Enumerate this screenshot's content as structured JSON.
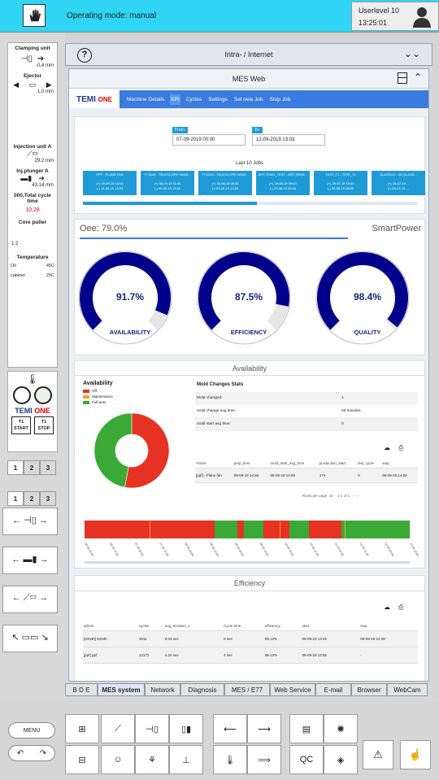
{
  "header": {
    "mode": "Operating mode: manual",
    "userlevel": "Userlevel 10",
    "time": "13:25:01"
  },
  "left": {
    "clamping": {
      "title": "Clamping unit",
      "value": "-0,4 mm"
    },
    "ejector": {
      "title": "Ejector",
      "value": "1,0 mm"
    },
    "injection": {
      "title": "Injection unit A",
      "value": "29,2 mm"
    },
    "plunger": {
      "title": "Inj.plunger A",
      "value": "43,14 mm"
    },
    "cycle": {
      "title": "000,Total cycle time",
      "value": "10,28"
    },
    "core": {
      "title": "Core puller",
      "nums": "1  2"
    },
    "temp": {
      "title": "Temperature",
      "oil_label": "Oil",
      "oil_val": "45C",
      "cab_label": "cabinet",
      "cab_val": "25C"
    },
    "logo": "TEMI",
    "logo2": "ONE",
    "start": "START",
    "stop": "STOP",
    "tabs": [
      "1",
      "2",
      "3"
    ],
    "tabs2": [
      "1",
      "2",
      "3"
    ]
  },
  "browser": {
    "title": "Intra- / Internet"
  },
  "mes": {
    "title": "MES Web",
    "nav": [
      "Machine Details",
      "KPI",
      "Cycles",
      "Settings",
      "Set new Job",
      "Stop Job"
    ],
    "from_label": "From:",
    "from_val": "07-09-2019 00:00",
    "to_label": "To:",
    "to_val": "12-09-2019 13:03",
    "last_jobs": "Last 10 Jobs",
    "jobs": [
      {
        "t": "PPF - PLANE FAN",
        "a": "(+) 09-09-19 13:56",
        "b": "(-) 12-09-19 13:03"
      },
      {
        "t": "TT154H - TELESCOPE HAND...",
        "a": "(+) 05-09-19 11:46",
        "b": "(-) 09-09-19 13:56"
      },
      {
        "t": "TT154H - TELESCOPE HAND...",
        "a": "(+) 30-08-19 09:32",
        "b": "(-) 03-09-19 12:08"
      },
      {
        "t": "ART-TEMI1_TEST - ART-TEMI1...",
        "a": "(+) 29-08-19 09:40",
        "b": "(-) 29-08-19 09:46"
      },
      {
        "t": "TEST_T1 - TEST_T1",
        "a": "(+) 29-07-19 15:40",
        "b": "(-) 29-08-19 08:50"
      },
      {
        "t": "GLASSCH - 3D GLASS...",
        "a": "(+) 29-07-19 ...",
        "b": "(-) 29-07-19 ..."
      }
    ],
    "oee": "Oee: 79.0%",
    "smartpower": "SmartPower",
    "gauges": [
      {
        "label": "AVAILABILITY",
        "value": "91.7%",
        "frac": 0.917
      },
      {
        "label": "EFFICIENCY",
        "value": "87.5%",
        "frac": 0.875
      },
      {
        "label": "QUALITY",
        "value": "98.4%",
        "frac": 0.984
      }
    ],
    "availability_title": "Availability",
    "legend_title": "Availability",
    "legend": [
      {
        "name": "Off",
        "color": "#e53222"
      },
      {
        "name": "Maintenance",
        "color": "#f5a623"
      },
      {
        "name": "Full-auto",
        "color": "#3aa936"
      }
    ],
    "mold_title": "Mold Changes Stats",
    "mold_rows": [
      [
        "Mold changed:",
        "1"
      ],
      [
        "mold change avg time:",
        "03 minutes"
      ],
      [
        "mold start avg time:",
        "0"
      ]
    ],
    "art_headers": [
      "Article",
      "prep_time",
      "mold_start_avg_time",
      "production_start",
      "last_cycle",
      "stop"
    ],
    "art_row": [
      "[ppf] - Plane fan",
      "09-09-19 14:56",
      "09-09-19 14:59",
      "174",
      "0",
      "09-09-19 14:59"
    ],
    "rows_per_page": "Rows per page:",
    "rpp_val": "10",
    "pager": "1-1 of 1",
    "efficiency_title": "Efficiency",
    "eff_headers": [
      "article",
      "cycles",
      "avg_duration_s",
      "Cycle time",
      "efficiency",
      "start",
      "stop"
    ],
    "eff_rows": [
      [
        "[tt154h] tt154h",
        "4611",
        "8.15 sec",
        "8 sec",
        "98.12%",
        "05-09-19 13:46",
        "09-09-19 14:48"
      ],
      [
        "[ppf] ppf",
        "13172",
        "4.16 sec",
        "4 sec",
        "96.12%",
        "09-09-19 14:56",
        "-"
      ]
    ],
    "timeline_ticks": [
      "06-09 00:00",
      "06-09 12:00",
      "07-09 00:00",
      "07-09 12:00",
      "08-09 00:00",
      "08-09 12:00",
      "09-09 00:00",
      "09-09 12:00",
      "10-09 00:00",
      "10-09 12:00",
      "11-09 00:00",
      "11-09 12:00",
      "12-09 00:00",
      "12-09 12:00"
    ]
  },
  "tabs": [
    "B D E",
    "MES system",
    "Network",
    "Diagnosis",
    "MES / E77",
    "Web Service",
    "E-mail",
    "Browser",
    "WebCam"
  ],
  "menu": "MENU",
  "chart_data": {
    "type": "pie",
    "title": "Availability",
    "categories": [
      "Off",
      "Maintenance",
      "Full-auto"
    ],
    "values": [
      53,
      0,
      47
    ]
  }
}
